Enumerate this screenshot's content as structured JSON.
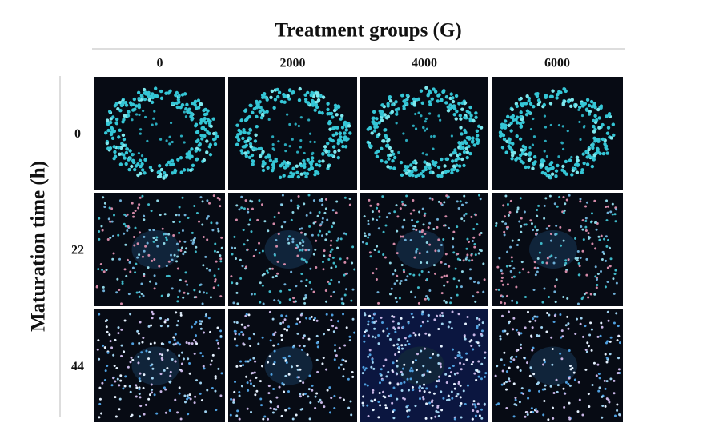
{
  "header": {
    "title": "Treatment groups (G)"
  },
  "columns": [
    "0",
    "2000",
    "4000",
    "6000"
  ],
  "row_axis_label": "Maturation time (h)",
  "rows": [
    "0",
    "22",
    "44"
  ]
}
